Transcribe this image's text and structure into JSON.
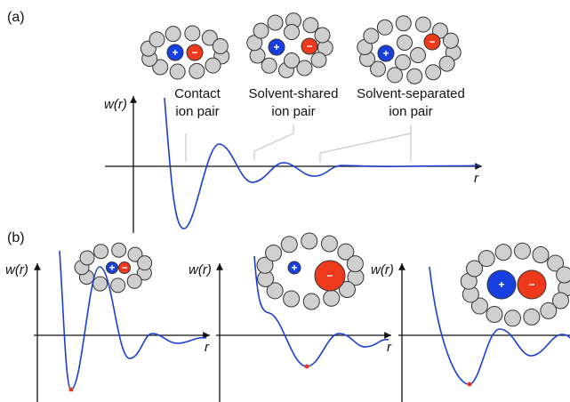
{
  "panel_a": {
    "label": "(a)",
    "y_axis_label": "w(r)",
    "x_axis_label": "r",
    "annotations": [
      {
        "lines": [
          "Contact",
          "ion pair"
        ]
      },
      {
        "lines": [
          "Solvent-shared",
          "ion pair"
        ]
      },
      {
        "lines": [
          "Solvent-separated",
          "ion pair"
        ]
      }
    ]
  },
  "panel_b": {
    "label": "(b)",
    "y_axis_label": "w(r)",
    "x_axis_label": "r"
  },
  "ion_signs": {
    "cation": "+",
    "anion": "−"
  }
}
